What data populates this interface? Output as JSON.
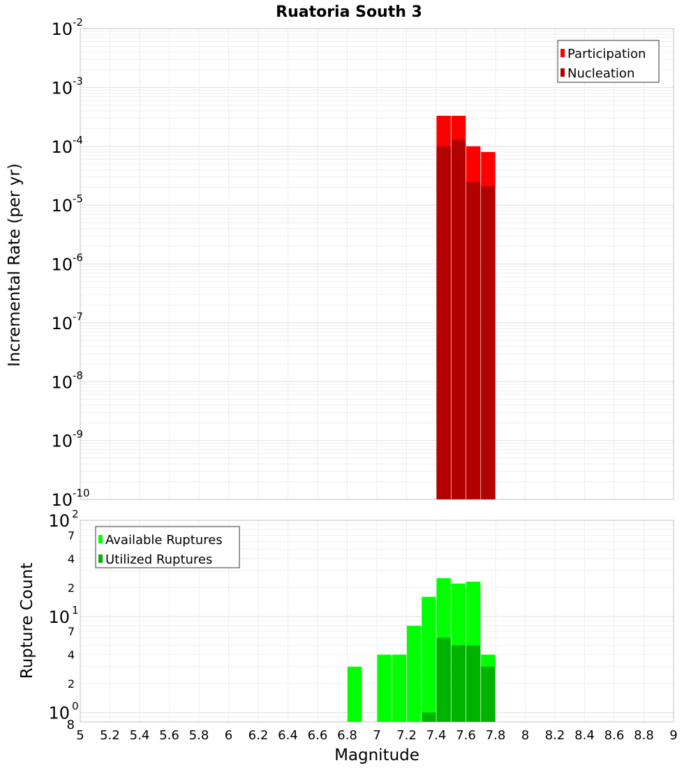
{
  "chart_data": [
    {
      "type": "bar",
      "title": "Ruatoria South 3",
      "ylabel": "Incremental Rate (per yr)",
      "yscale": "log",
      "ylim": [
        1e-10,
        0.01
      ],
      "xlim": [
        5,
        9
      ],
      "legend_position": "top-right",
      "y_ticks": [
        {
          "base": "10",
          "exp": "-10"
        },
        {
          "base": "10",
          "exp": "-9"
        },
        {
          "base": "10",
          "exp": "-8"
        },
        {
          "base": "10",
          "exp": "-7"
        },
        {
          "base": "10",
          "exp": "-6"
        },
        {
          "base": "10",
          "exp": "-5"
        },
        {
          "base": "10",
          "exp": "-4"
        },
        {
          "base": "10",
          "exp": "-3"
        },
        {
          "base": "10",
          "exp": "-2"
        }
      ],
      "x": [
        7.45,
        7.55,
        7.65,
        7.75
      ],
      "series": [
        {
          "name": "Participation",
          "color": "#ff0000",
          "values": [
            0.00033,
            0.00033,
            0.0001,
            8e-05
          ]
        },
        {
          "name": "Nucleation",
          "color": "#b30000",
          "values": [
            0.0001,
            0.00013,
            2.5e-05,
            2.1e-05
          ]
        }
      ]
    },
    {
      "type": "bar",
      "ylabel": "Rupture Count",
      "yscale": "log",
      "ylim": [
        0.8,
        100
      ],
      "xlim": [
        5,
        9
      ],
      "legend_position": "top-left",
      "xlabel": "Magnitude",
      "x_tick_labels": [
        "5",
        "5.2",
        "5.4",
        "5.6",
        "5.8",
        "6",
        "6.2",
        "6.4",
        "6.6",
        "6.8",
        "7",
        "7.2",
        "7.4",
        "7.6",
        "7.8",
        "8",
        "8.2",
        "8.4",
        "8.6",
        "8.8",
        "9"
      ],
      "y_major_ticks": [
        {
          "base": "10",
          "exp": "0"
        },
        {
          "base": "10",
          "exp": "1"
        },
        {
          "base": "10",
          "exp": "2"
        }
      ],
      "y_minor_ticks": [
        {
          "value": 0.8,
          "label": "8"
        },
        {
          "value": 2,
          "label": "2"
        },
        {
          "value": 4,
          "label": "4"
        },
        {
          "value": 7,
          "label": "7"
        },
        {
          "value": 20,
          "label": "2"
        },
        {
          "value": 40,
          "label": "4"
        },
        {
          "value": 70,
          "label": "7"
        }
      ],
      "x": [
        6.85,
        7.05,
        7.15,
        7.25,
        7.35,
        7.45,
        7.55,
        7.65,
        7.75
      ],
      "series": [
        {
          "name": "Available Ruptures",
          "color": "#00ff00",
          "values": [
            3,
            4,
            4,
            8,
            16,
            25,
            22,
            23,
            4
          ]
        },
        {
          "name": "Utilized Ruptures",
          "color": "#00b300",
          "values": [
            0,
            0,
            0,
            0,
            1,
            6,
            5,
            5,
            3
          ]
        }
      ]
    }
  ]
}
